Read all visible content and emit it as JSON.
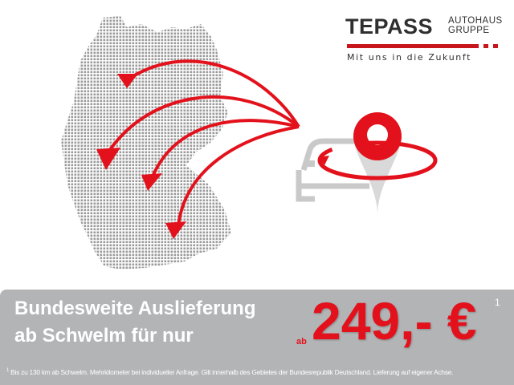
{
  "logo": {
    "name": "TEPASS",
    "sub_line1": "AUTOHAUS",
    "sub_line2": "GRUPPE",
    "tagline": "Mit uns in die Zukunft"
  },
  "banner": {
    "line1": "Bundesweite Auslieferung",
    "line2": "ab Schwelm für nur",
    "price_prefix": "ab",
    "price": "249,- €",
    "price_footnote_mark": "1"
  },
  "footnote": {
    "mark": "1",
    "text": "Bis zu 130 km ab Schwelm. Mehrkilometer bei individueller Anfrage. Gilt innerhalb des Gebietes der Bundesrepublik Deutschland. Lieferung auf eigener Achse."
  },
  "colors": {
    "accent": "#e3111b",
    "banner": "#b3b4b6",
    "logo_red": "#c8141b",
    "map_dots": "#9a9a9a",
    "icon_gray": "#c9c9c9"
  },
  "icons": [
    "germany-dot-map",
    "delivery-arrows",
    "car-icon",
    "location-pin-icon"
  ]
}
